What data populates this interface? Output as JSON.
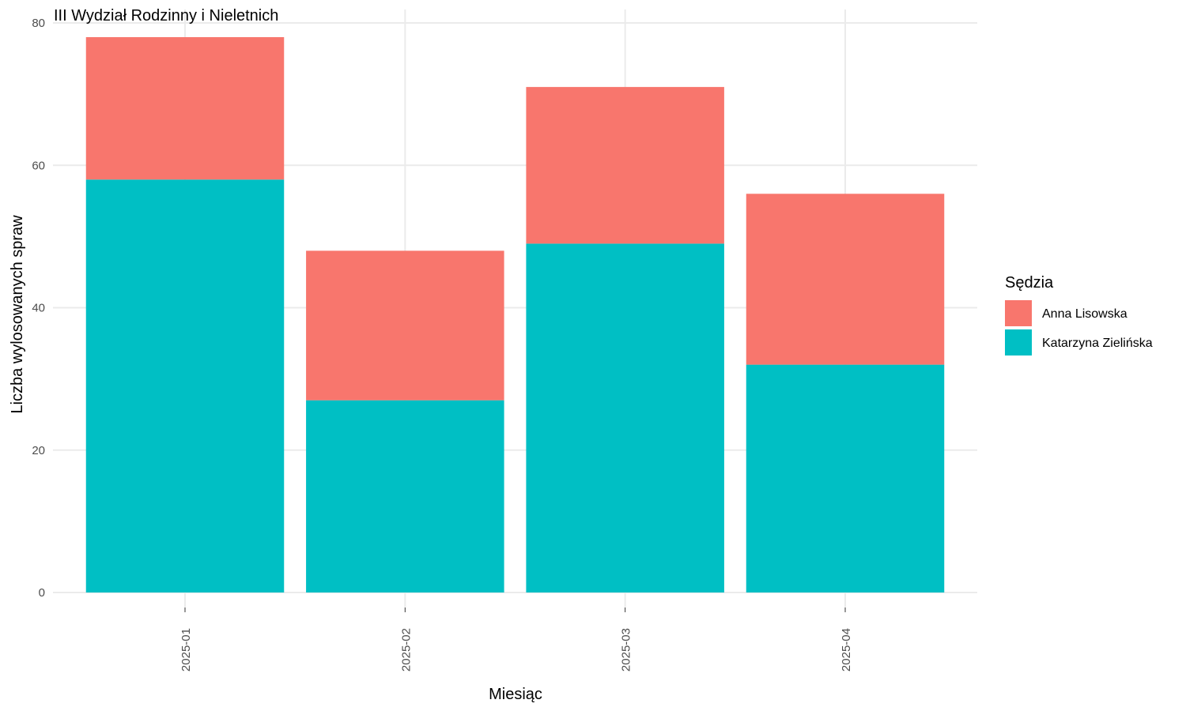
{
  "chart_data": {
    "type": "bar",
    "stacked": true,
    "title": "III Wydział Rodzinny i Nieletnich",
    "xlabel": "Miesiąc",
    "ylabel": "Liczba wylosowanych spraw",
    "categories": [
      "2025-01",
      "2025-02",
      "2025-03",
      "2025-04"
    ],
    "series": [
      {
        "name": "Katarzyna Zielińska",
        "color": "#00BFC4",
        "values": [
          58,
          27,
          49,
          32
        ]
      },
      {
        "name": "Anna Lisowska",
        "color": "#F8766D",
        "values": [
          20,
          21,
          22,
          24
        ]
      }
    ],
    "ylim": [
      0,
      80
    ],
    "yticks": [
      0,
      20,
      40,
      60,
      80
    ],
    "grid": true,
    "legend": {
      "title": "Sędzia",
      "placement": "right",
      "order": [
        "Anna Lisowska",
        "Katarzyna Zielińska"
      ]
    }
  }
}
